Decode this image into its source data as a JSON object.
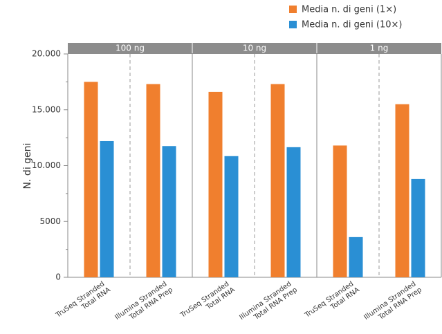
{
  "chart_data": {
    "type": "bar",
    "y_label": "N. di geni",
    "groups": [
      "100 ng",
      "10 ng",
      "1 ng"
    ],
    "categories": [
      [
        "TruSeq Stranded",
        "Total RNA"
      ],
      [
        "Illumina Stranded",
        "Total RNA Prep"
      ],
      [
        "TruSeq Stranded",
        "Total RNA"
      ],
      [
        "Illumina Stranded",
        "Total RNA Prep"
      ],
      [
        "TruSeq Stranded",
        "Total RNA"
      ],
      [
        "Illumina Stranded",
        "Total RNA Prep"
      ]
    ],
    "series": [
      {
        "name": "Media n. di geni (1×)",
        "color": "#f07f2e",
        "values": [
          17500,
          17300,
          16600,
          17300,
          11800,
          15500
        ]
      },
      {
        "name": "Media n. di geni (10×)",
        "color": "#2a8fd4",
        "values": [
          12200,
          11750,
          10850,
          11650,
          3600,
          8800
        ]
      }
    ],
    "ylim": [
      0,
      20000
    ],
    "yticks": [
      0,
      5000,
      {
        "value": 10000,
        "label": "10.000"
      },
      {
        "value": 15000,
        "label": "15.000"
      },
      {
        "value": 20000,
        "label": "20.000"
      }
    ],
    "minor_yticks": [
      2500,
      7500,
      12500,
      17500
    ],
    "legend": "top-right"
  }
}
